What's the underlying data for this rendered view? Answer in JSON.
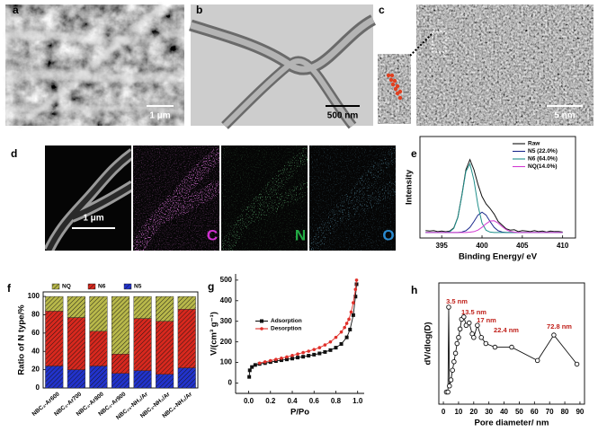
{
  "panel_labels": [
    "a",
    "b",
    "c",
    "d",
    "e",
    "f",
    "g",
    "h"
  ],
  "images": {
    "a": {
      "scale_bar": "1 μm"
    },
    "b": {
      "scale_bar": "500 nm"
    },
    "c": {
      "scale_bar": "5 nm"
    },
    "d": {
      "scale_bar": "1 μm",
      "elements": [
        "C",
        "N",
        "O"
      ]
    }
  },
  "chart_data": [
    {
      "type": "line",
      "frame": "box",
      "xlabel": "Binding Energy/ eV",
      "ylabel": "Intensity",
      "xlim": [
        392.3,
        411.6
      ],
      "ylim": [
        0,
        110
      ],
      "xticks": [
        395,
        400,
        405,
        410
      ],
      "legend": "upper right",
      "x": [
        393,
        393.5,
        394,
        394.5,
        395,
        395.5,
        396,
        396.5,
        397,
        397.5,
        398,
        398.5,
        399,
        399.5,
        400,
        400.5,
        401,
        401.5,
        402,
        402.5,
        403,
        403.5,
        404,
        404.5,
        405,
        405.5,
        406,
        406.5,
        407,
        407.5,
        408,
        408.5,
        409,
        409.5,
        410
      ],
      "series": [
        {
          "name": "Raw",
          "color": "#111111",
          "values": [
            8,
            7.5,
            8,
            7,
            7.5,
            6.8,
            7.5,
            11,
            22.5,
            46.5,
            74,
            85,
            74,
            58,
            45,
            37,
            32,
            26,
            18,
            14,
            10,
            8.5,
            9,
            7,
            8,
            7.5,
            7,
            8,
            7,
            7.5,
            6.5,
            7.5,
            7,
            7,
            6.5
          ]
        },
        {
          "name": "N5 (22.0%)",
          "color": "#1c2a8c",
          "values": [
            6,
            6,
            6,
            6,
            6,
            6,
            6,
            6,
            6,
            6.5,
            7.9,
            11.5,
            17.9,
            24.9,
            28,
            24.9,
            17.9,
            11.5,
            7.9,
            6.5,
            6,
            6,
            6,
            6,
            6,
            6,
            6,
            6,
            6,
            6,
            6,
            6,
            6,
            6,
            6
          ]
        },
        {
          "name": "N6 (64.0%)",
          "color": "#1f8f8a",
          "values": [
            6,
            6,
            6,
            6,
            6,
            6,
            6.8,
            10.5,
            22.2,
            45.8,
            72.2,
            80.4,
            62.6,
            35.2,
            16.2,
            8.4,
            6.4,
            6,
            6,
            6,
            6,
            6,
            6,
            6,
            6,
            6,
            6,
            6,
            6,
            6,
            6,
            6,
            6,
            6,
            6
          ]
        },
        {
          "name": "NQ(14.0%)",
          "color": "#d23bd2",
          "values": [
            6,
            6,
            6,
            6,
            6,
            6,
            6,
            6,
            6,
            6,
            6,
            6.3,
            6.9,
            8.6,
            11.6,
            15.4,
            18.4,
            18.7,
            16.2,
            12.3,
            9.1,
            7.2,
            6.3,
            6,
            6,
            6,
            6,
            6,
            6,
            6,
            6,
            6,
            6,
            6,
            6
          ]
        }
      ]
    },
    {
      "type": "bar",
      "stacked": true,
      "frame": "box",
      "ylabel": "Ratio of N type/%",
      "ylim": [
        0,
        105
      ],
      "yticks": [
        0,
        20,
        40,
        60,
        80,
        100
      ],
      "legend": "top",
      "categories": [
        "NBC₃-Ar600",
        "NBC₃-Ar700",
        "NBC₃-Ar800",
        "NBC₃-Ar900",
        "NBC₂₅-NH₃/Ar",
        "NBC₃-NH₃/Ar",
        "NBC₄-NH₃/Ar"
      ],
      "series": [
        {
          "name": "N5",
          "color": "#2233cc",
          "values": [
            24,
            20,
            24,
            16,
            19,
            15,
            22
          ]
        },
        {
          "name": "N6",
          "color": "#d8281e",
          "values": [
            60,
            57,
            38,
            21,
            57,
            58,
            64
          ]
        },
        {
          "name": "NQ",
          "color": "#b8b84a",
          "values": [
            16,
            23,
            38,
            63,
            24,
            27,
            14
          ]
        }
      ]
    },
    {
      "type": "line",
      "frame": "axes",
      "xlabel": "P/Po",
      "ylabel": "V/(cm³ g⁻¹)",
      "xlim": [
        -0.12,
        1.06
      ],
      "ylim": [
        -50,
        530
      ],
      "xticks": [
        {
          "value": 0,
          "label": "0.0"
        },
        0.2,
        0.4,
        0.6,
        0.8,
        {
          "value": 1,
          "label": "1.0"
        }
      ],
      "yticks": [
        0,
        100,
        200,
        300,
        400,
        500
      ],
      "legend": "center left",
      "series": [
        {
          "name": "Adsorption",
          "color": "#111111",
          "marker": "square",
          "x": [
            0.005,
            0.01,
            0.03,
            0.06,
            0.1,
            0.15,
            0.2,
            0.25,
            0.3,
            0.35,
            0.4,
            0.45,
            0.5,
            0.55,
            0.6,
            0.65,
            0.7,
            0.75,
            0.8,
            0.85,
            0.9,
            0.93,
            0.96,
            0.98,
            0.99
          ],
          "values": [
            30,
            62,
            78,
            88,
            93,
            97,
            102,
            107,
            111,
            115,
            119,
            124,
            128,
            133,
            138,
            144,
            151,
            160,
            172,
            190,
            222,
            260,
            330,
            420,
            480
          ]
        },
        {
          "name": "Desorption",
          "color": "#e0302a",
          "marker": "circle",
          "x": [
            0.99,
            0.98,
            0.96,
            0.94,
            0.92,
            0.9,
            0.88,
            0.85,
            0.8,
            0.75,
            0.7,
            0.65,
            0.6,
            0.55,
            0.5,
            0.45,
            0.4,
            0.35,
            0.3,
            0.25,
            0.2,
            0.15,
            0.1
          ],
          "values": [
            500,
            455,
            390,
            345,
            310,
            290,
            270,
            248,
            222,
            200,
            185,
            172,
            163,
            155,
            148,
            141,
            134,
            127,
            121,
            115,
            109,
            103,
            97
          ]
        }
      ]
    },
    {
      "type": "line",
      "frame": "box",
      "xlabel": "Pore diameter/ nm",
      "ylabel": "dV/dlog(D)",
      "xlim": [
        -3,
        93
      ],
      "ylim": [
        0,
        1
      ],
      "xticks": [
        0,
        10,
        20,
        30,
        40,
        50,
        60,
        70,
        80,
        90
      ],
      "annotations": [
        "3.5 nm",
        "13.5 nm",
        "17 nm",
        "22.4 nm",
        "72.8 nm"
      ],
      "annotation_color": "#c0201a",
      "series": [
        {
          "color": "#111111",
          "marker": "circle-open",
          "x": [
            2,
            3,
            3.5,
            4,
            5,
            6,
            7,
            8,
            9,
            10,
            11,
            12,
            13.5,
            15,
            17,
            19,
            20,
            22.4,
            25,
            28,
            34,
            45,
            62,
            72.8,
            88
          ],
          "values": [
            0.1,
            0.1,
            0.8,
            0.15,
            0.2,
            0.28,
            0.35,
            0.42,
            0.5,
            0.55,
            0.62,
            0.7,
            0.72,
            0.65,
            0.67,
            0.58,
            0.55,
            0.65,
            0.55,
            0.5,
            0.47,
            0.47,
            0.36,
            0.57,
            0.33
          ]
        }
      ]
    }
  ]
}
